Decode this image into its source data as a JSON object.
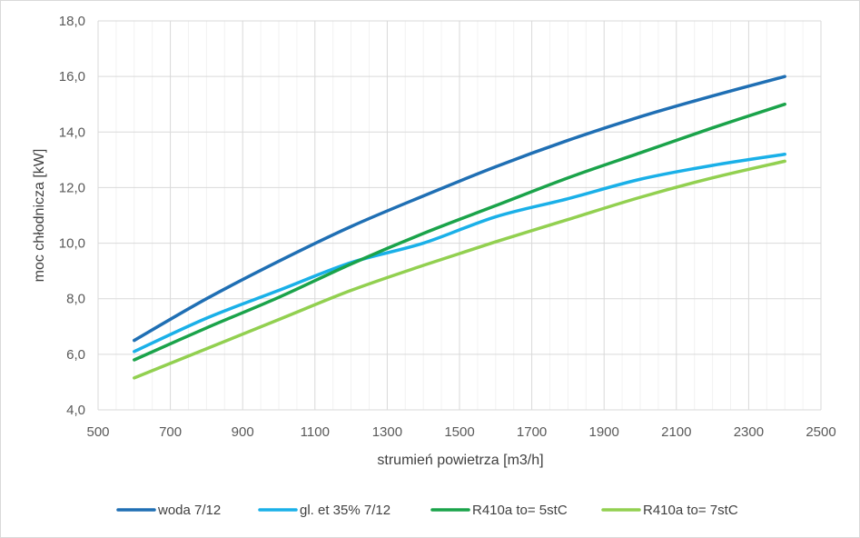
{
  "chart_data": {
    "type": "line",
    "title": "",
    "xlabel": "strumień powietrza [m3/h]",
    "ylabel": "moc chłodnicza [kW]",
    "xlim": [
      500,
      2500
    ],
    "ylim": [
      4.0,
      18.0
    ],
    "x_ticks": [
      "500",
      "700",
      "900",
      "1100",
      "1300",
      "1500",
      "1700",
      "1900",
      "2100",
      "2300",
      "2500"
    ],
    "y_ticks": [
      "4,0",
      "6,0",
      "8,0",
      "10,0",
      "12,0",
      "14,0",
      "16,0",
      "18,0"
    ],
    "grid": true,
    "legend_position": "bottom",
    "series": [
      {
        "name": "woda 7/12",
        "color": "#1f6fb4",
        "points": [
          [
            600,
            6.5
          ],
          [
            800,
            8.0
          ],
          [
            1000,
            9.35
          ],
          [
            1200,
            10.6
          ],
          [
            1400,
            11.7
          ],
          [
            1600,
            12.75
          ],
          [
            1800,
            13.7
          ],
          [
            2000,
            14.55
          ],
          [
            2200,
            15.3
          ],
          [
            2400,
            16.0
          ]
        ]
      },
      {
        "name": "gl. et 35% 7/12",
        "color": "#1ab0e8",
        "points": [
          [
            600,
            6.1
          ],
          [
            800,
            7.3
          ],
          [
            1000,
            8.3
          ],
          [
            1200,
            9.3
          ],
          [
            1400,
            10.0
          ],
          [
            1600,
            10.95
          ],
          [
            1800,
            11.6
          ],
          [
            2000,
            12.3
          ],
          [
            2200,
            12.8
          ],
          [
            2400,
            13.2
          ]
        ]
      },
      {
        "name": "R410a to= 5stC",
        "color": "#1aa34a",
        "points": [
          [
            600,
            5.8
          ],
          [
            800,
            6.95
          ],
          [
            1000,
            8.05
          ],
          [
            1200,
            9.25
          ],
          [
            1400,
            10.35
          ],
          [
            1600,
            11.35
          ],
          [
            1800,
            12.35
          ],
          [
            2000,
            13.25
          ],
          [
            2200,
            14.15
          ],
          [
            2400,
            15.0
          ]
        ]
      },
      {
        "name": "R410a to= 7stC",
        "color": "#92d050",
        "points": [
          [
            600,
            5.15
          ],
          [
            800,
            6.2
          ],
          [
            1000,
            7.25
          ],
          [
            1200,
            8.3
          ],
          [
            1400,
            9.2
          ],
          [
            1600,
            10.05
          ],
          [
            1800,
            10.85
          ],
          [
            2000,
            11.65
          ],
          [
            2200,
            12.35
          ],
          [
            2400,
            12.95
          ]
        ]
      }
    ]
  }
}
